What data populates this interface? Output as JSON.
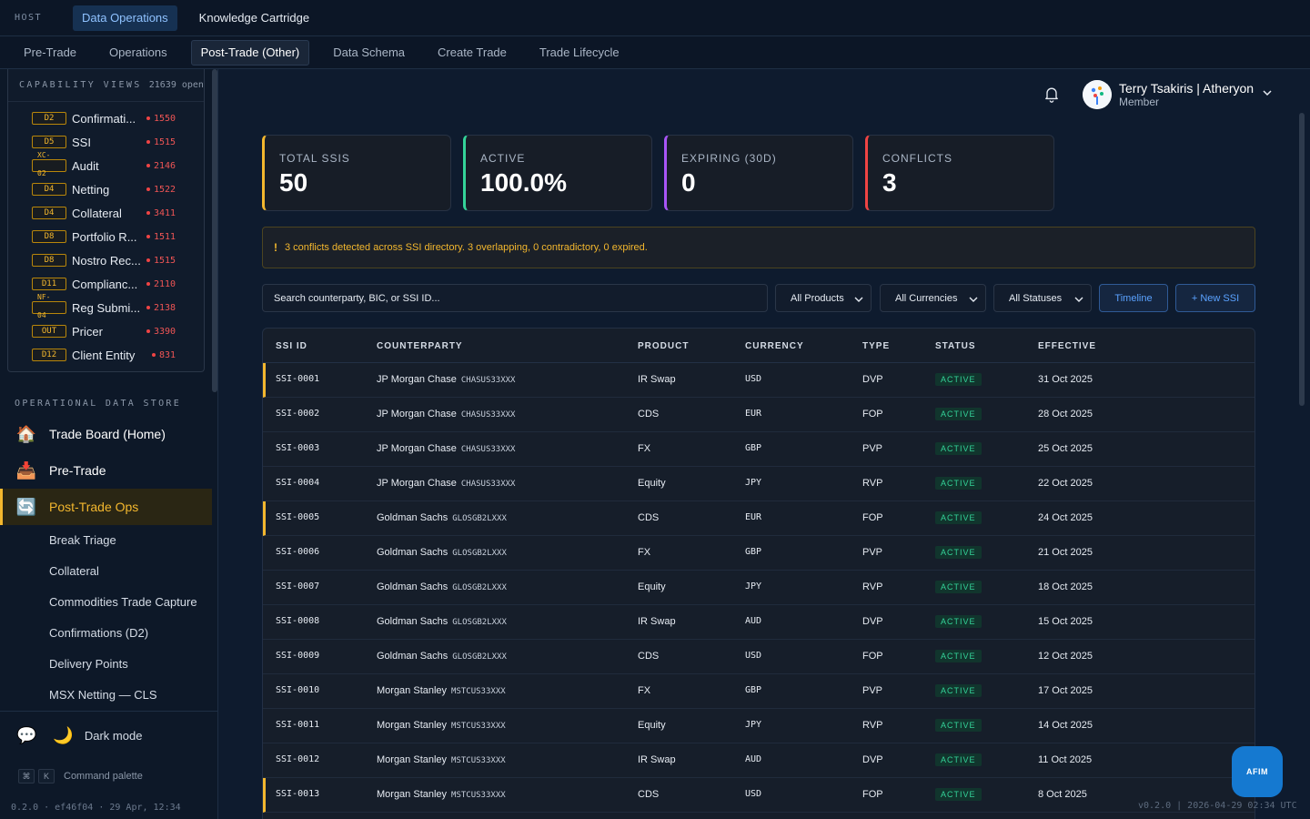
{
  "topbar": {
    "host_label": "HOST",
    "tabs": [
      {
        "label": "Data Operations",
        "active": true
      },
      {
        "label": "Knowledge Cartridge",
        "active": false
      }
    ]
  },
  "nav": {
    "tabs": [
      {
        "label": "Pre-Trade"
      },
      {
        "label": "Operations"
      },
      {
        "label": "Post-Trade (Other)",
        "active": true
      },
      {
        "label": "Data Schema"
      },
      {
        "label": "Create Trade"
      },
      {
        "label": "Trade Lifecycle"
      }
    ]
  },
  "capability": {
    "title": "CAPABILITY VIEWS",
    "count": "21639 open",
    "items": [
      {
        "badge": "D2",
        "label": "Confirmati...",
        "count": "1550"
      },
      {
        "badge": "D5",
        "label": "SSI",
        "count": "1515"
      },
      {
        "badge_top": "XC-",
        "badge_bottom": "02",
        "label": "Audit",
        "count": "2146"
      },
      {
        "badge": "D4",
        "label": "Netting",
        "count": "1522"
      },
      {
        "badge": "D4",
        "label": "Collateral",
        "count": "3411"
      },
      {
        "badge": "D8",
        "label": "Portfolio R...",
        "count": "1511"
      },
      {
        "badge": "D8",
        "label": "Nostro Rec...",
        "count": "1515"
      },
      {
        "badge": "D11",
        "label": "Complianc...",
        "count": "2110"
      },
      {
        "badge_top": "NF-",
        "badge_bottom": "04",
        "label": "Reg Submi...",
        "count": "2138"
      },
      {
        "badge": "OUT",
        "label": "Pricer",
        "count": "3390"
      },
      {
        "badge": "D12",
        "label": "Client Entity",
        "count": "831"
      }
    ]
  },
  "ods": {
    "title": "OPERATIONAL DATA STORE",
    "items": [
      {
        "emoji": "🏠",
        "label": "Trade Board (Home)"
      },
      {
        "emoji": "📥",
        "label": "Pre-Trade"
      },
      {
        "emoji": "🔄",
        "label": "Post-Trade Ops",
        "active": true
      }
    ],
    "sub_items": [
      "Break Triage",
      "Collateral",
      "Commodities Trade Capture",
      "Confirmations (D2)",
      "Delivery Points",
      "MSX Netting — CLS"
    ]
  },
  "footer": {
    "chat_emoji": "💬",
    "moon_emoji": "🌙",
    "dark_mode_label": "Dark mode",
    "kbd_cmd": "⌘",
    "kbd_k": "K",
    "command_label": "Command palette",
    "build": "0.2.0 · ef46f04 · 29 Apr, 12:34"
  },
  "user": {
    "name": "Terry Tsakiris | Atheryon",
    "role": "Member"
  },
  "kpis": [
    {
      "label": "TOTAL SSIS",
      "value": "50",
      "color": "#f3b72e"
    },
    {
      "label": "ACTIVE",
      "value": "100.0%",
      "color": "#34d399"
    },
    {
      "label": "EXPIRING (30D)",
      "value": "0",
      "color": "#a855f7"
    },
    {
      "label": "CONFLICTS",
      "value": "3",
      "color": "#ef4444"
    }
  ],
  "alert": {
    "icon": "!",
    "text": "3 conflicts detected across SSI directory. 3 overlapping, 0 contradictory, 0 expired."
  },
  "filters": {
    "search_placeholder": "Search counterparty, BIC, or SSI ID...",
    "products": "All Products",
    "currencies": "All Currencies",
    "statuses": "All Statuses",
    "timeline": "Timeline",
    "new_ssi": "+ New SSI"
  },
  "table": {
    "headers": [
      "SSI ID",
      "COUNTERPARTY",
      "PRODUCT",
      "CURRENCY",
      "TYPE",
      "STATUS",
      "EFFECTIVE"
    ],
    "rows": [
      {
        "id": "SSI-0001",
        "cp": "JP Morgan Chase",
        "bic": "CHASUS33XXX",
        "product": "IR Swap",
        "ccy": "USD",
        "type": "DVP",
        "status": "ACTIVE",
        "effective": "31 Oct 2025",
        "flag": true
      },
      {
        "id": "SSI-0002",
        "cp": "JP Morgan Chase",
        "bic": "CHASUS33XXX",
        "product": "CDS",
        "ccy": "EUR",
        "type": "FOP",
        "status": "ACTIVE",
        "effective": "28 Oct 2025",
        "flag": false
      },
      {
        "id": "SSI-0003",
        "cp": "JP Morgan Chase",
        "bic": "CHASUS33XXX",
        "product": "FX",
        "ccy": "GBP",
        "type": "PVP",
        "status": "ACTIVE",
        "effective": "25 Oct 2025",
        "flag": false
      },
      {
        "id": "SSI-0004",
        "cp": "JP Morgan Chase",
        "bic": "CHASUS33XXX",
        "product": "Equity",
        "ccy": "JPY",
        "type": "RVP",
        "status": "ACTIVE",
        "effective": "22 Oct 2025",
        "flag": false
      },
      {
        "id": "SSI-0005",
        "cp": "Goldman Sachs",
        "bic": "GLOSGB2LXXX",
        "product": "CDS",
        "ccy": "EUR",
        "type": "FOP",
        "status": "ACTIVE",
        "effective": "24 Oct 2025",
        "flag": true
      },
      {
        "id": "SSI-0006",
        "cp": "Goldman Sachs",
        "bic": "GLOSGB2LXXX",
        "product": "FX",
        "ccy": "GBP",
        "type": "PVP",
        "status": "ACTIVE",
        "effective": "21 Oct 2025",
        "flag": false
      },
      {
        "id": "SSI-0007",
        "cp": "Goldman Sachs",
        "bic": "GLOSGB2LXXX",
        "product": "Equity",
        "ccy": "JPY",
        "type": "RVP",
        "status": "ACTIVE",
        "effective": "18 Oct 2025",
        "flag": false
      },
      {
        "id": "SSI-0008",
        "cp": "Goldman Sachs",
        "bic": "GLOSGB2LXXX",
        "product": "IR Swap",
        "ccy": "AUD",
        "type": "DVP",
        "status": "ACTIVE",
        "effective": "15 Oct 2025",
        "flag": false
      },
      {
        "id": "SSI-0009",
        "cp": "Goldman Sachs",
        "bic": "GLOSGB2LXXX",
        "product": "CDS",
        "ccy": "USD",
        "type": "FOP",
        "status": "ACTIVE",
        "effective": "12 Oct 2025",
        "flag": false
      },
      {
        "id": "SSI-0010",
        "cp": "Morgan Stanley",
        "bic": "MSTCUS33XXX",
        "product": "FX",
        "ccy": "GBP",
        "type": "PVP",
        "status": "ACTIVE",
        "effective": "17 Oct 2025",
        "flag": false
      },
      {
        "id": "SSI-0011",
        "cp": "Morgan Stanley",
        "bic": "MSTCUS33XXX",
        "product": "Equity",
        "ccy": "JPY",
        "type": "RVP",
        "status": "ACTIVE",
        "effective": "14 Oct 2025",
        "flag": false
      },
      {
        "id": "SSI-0012",
        "cp": "Morgan Stanley",
        "bic": "MSTCUS33XXX",
        "product": "IR Swap",
        "ccy": "AUD",
        "type": "DVP",
        "status": "ACTIVE",
        "effective": "11 Oct 2025",
        "flag": false
      },
      {
        "id": "SSI-0013",
        "cp": "Morgan Stanley",
        "bic": "MSTCUS33XXX",
        "product": "CDS",
        "ccy": "USD",
        "type": "FOP",
        "status": "ACTIVE",
        "effective": "8 Oct 2025",
        "flag": true
      }
    ]
  },
  "fab_label": "AFIM",
  "version": "v0.2.0 | 2026-04-29 02:34 UTC"
}
